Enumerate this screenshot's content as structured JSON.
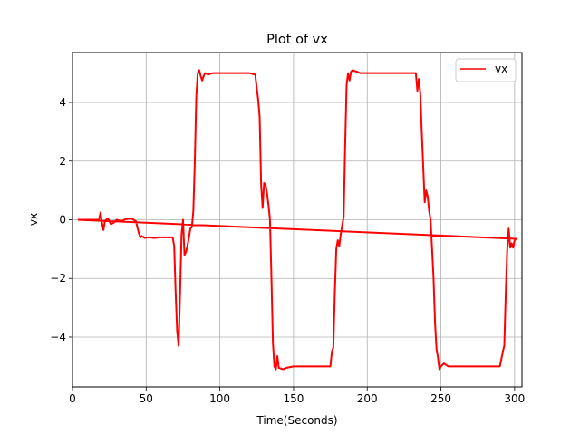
{
  "chart_data": {
    "type": "line",
    "title": "Plot of vx",
    "xlabel": "Time(Seconds)",
    "ylabel": "vx",
    "xlim": [
      0,
      305
    ],
    "ylim": [
      -5.7,
      5.7
    ],
    "xticks": [
      0,
      50,
      100,
      150,
      200,
      250,
      300
    ],
    "yticks": [
      -4,
      -2,
      0,
      2,
      4
    ],
    "xtick_labels": [
      "0",
      "50",
      "100",
      "150",
      "200",
      "250",
      "300"
    ],
    "ytick_labels": [
      "−4",
      "−2",
      "0",
      "2",
      "4"
    ],
    "grid": true,
    "legend_position": "top-right",
    "series": [
      {
        "name": "vx",
        "color": "#ff0000",
        "points": [
          [
            3.6,
            0.0
          ],
          [
            10,
            0.0
          ],
          [
            18,
            0.0
          ],
          [
            19,
            0.25
          ],
          [
            20,
            -0.1
          ],
          [
            21,
            -0.35
          ],
          [
            22,
            -0.05
          ],
          [
            24,
            0.05
          ],
          [
            26,
            -0.15
          ],
          [
            28,
            -0.1
          ],
          [
            30,
            0.0
          ],
          [
            33,
            -0.05
          ],
          [
            36,
            0.02
          ],
          [
            40,
            0.05
          ],
          [
            43,
            -0.05
          ],
          [
            45,
            -0.45
          ],
          [
            46,
            -0.6
          ],
          [
            47,
            -0.55
          ],
          [
            49,
            -0.62
          ],
          [
            52,
            -0.6
          ],
          [
            55,
            -0.62
          ],
          [
            60,
            -0.6
          ],
          [
            64,
            -0.6
          ],
          [
            66,
            -0.6
          ],
          [
            68,
            -0.6
          ],
          [
            69,
            -0.9
          ],
          [
            70,
            -2.5
          ],
          [
            71,
            -3.8
          ],
          [
            72,
            -4.3
          ],
          [
            73,
            -2.5
          ],
          [
            74,
            -0.5
          ],
          [
            75,
            0.0
          ],
          [
            76,
            -1.2
          ],
          [
            77,
            -1.1
          ],
          [
            78,
            -0.9
          ],
          [
            79,
            -0.6
          ],
          [
            80,
            -0.3
          ],
          [
            81,
            -0.25
          ],
          [
            82,
            0.3
          ],
          [
            83,
            2.0
          ],
          [
            84,
            4.2
          ],
          [
            85,
            5.0
          ],
          [
            86,
            5.1
          ],
          [
            87,
            4.9
          ],
          [
            88,
            4.75
          ],
          [
            89,
            4.9
          ],
          [
            90,
            5.0
          ],
          [
            92,
            4.95
          ],
          [
            95,
            5.0
          ],
          [
            100,
            5.0
          ],
          [
            110,
            5.0
          ],
          [
            120,
            5.0
          ],
          [
            124,
            4.95
          ],
          [
            125,
            4.5
          ],
          [
            126,
            4.1
          ],
          [
            127,
            3.5
          ],
          [
            128,
            1.2
          ],
          [
            129,
            0.4
          ],
          [
            130,
            1.25
          ],
          [
            131,
            1.2
          ],
          [
            132,
            0.9
          ],
          [
            133,
            0.5
          ],
          [
            134,
            0.0
          ],
          [
            135,
            -2.0
          ],
          [
            136,
            -4.2
          ],
          [
            137,
            -5.0
          ],
          [
            138,
            -5.1
          ],
          [
            139,
            -4.65
          ],
          [
            140,
            -5.05
          ],
          [
            143,
            -5.1
          ],
          [
            145,
            -5.05
          ],
          [
            150,
            -5.0
          ],
          [
            160,
            -5.0
          ],
          [
            170,
            -5.0
          ],
          [
            175,
            -5.0
          ],
          [
            176,
            -4.5
          ],
          [
            177,
            -4.35
          ],
          [
            178,
            -2.5
          ],
          [
            179,
            -1.0
          ],
          [
            180,
            -0.7
          ],
          [
            181,
            -0.9
          ],
          [
            182,
            -0.5
          ],
          [
            183,
            -0.2
          ],
          [
            184,
            0.1
          ],
          [
            185,
            2.5
          ],
          [
            186,
            4.6
          ],
          [
            187,
            5.0
          ],
          [
            188,
            4.75
          ],
          [
            189,
            5.05
          ],
          [
            190,
            5.1
          ],
          [
            193,
            5.05
          ],
          [
            195,
            5.0
          ],
          [
            210,
            5.0
          ],
          [
            225,
            5.0
          ],
          [
            233,
            5.0
          ],
          [
            234,
            4.4
          ],
          [
            235,
            4.8
          ],
          [
            236,
            4.3
          ],
          [
            237,
            3.0
          ],
          [
            238,
            1.8
          ],
          [
            239,
            0.6
          ],
          [
            240,
            1.0
          ],
          [
            241,
            0.8
          ],
          [
            242,
            0.3
          ],
          [
            243,
            0.0
          ],
          [
            244,
            -1.0
          ],
          [
            245,
            -2.0
          ],
          [
            246,
            -3.5
          ],
          [
            247,
            -4.4
          ],
          [
            248,
            -4.7
          ],
          [
            249,
            -5.1
          ],
          [
            250,
            -5.0
          ],
          [
            252,
            -4.9
          ],
          [
            255,
            -5.0
          ],
          [
            265,
            -5.0
          ],
          [
            280,
            -5.0
          ],
          [
            290,
            -5.0
          ],
          [
            292,
            -4.5
          ],
          [
            293,
            -4.3
          ],
          [
            294,
            -2.5
          ],
          [
            295,
            -1.0
          ],
          [
            296,
            -0.3
          ],
          [
            297,
            -0.95
          ],
          [
            298,
            -0.8
          ],
          [
            299,
            -0.95
          ],
          [
            300,
            -0.7
          ],
          [
            301,
            -0.65
          ],
          [
            3.6,
            0.0
          ]
        ]
      }
    ]
  }
}
